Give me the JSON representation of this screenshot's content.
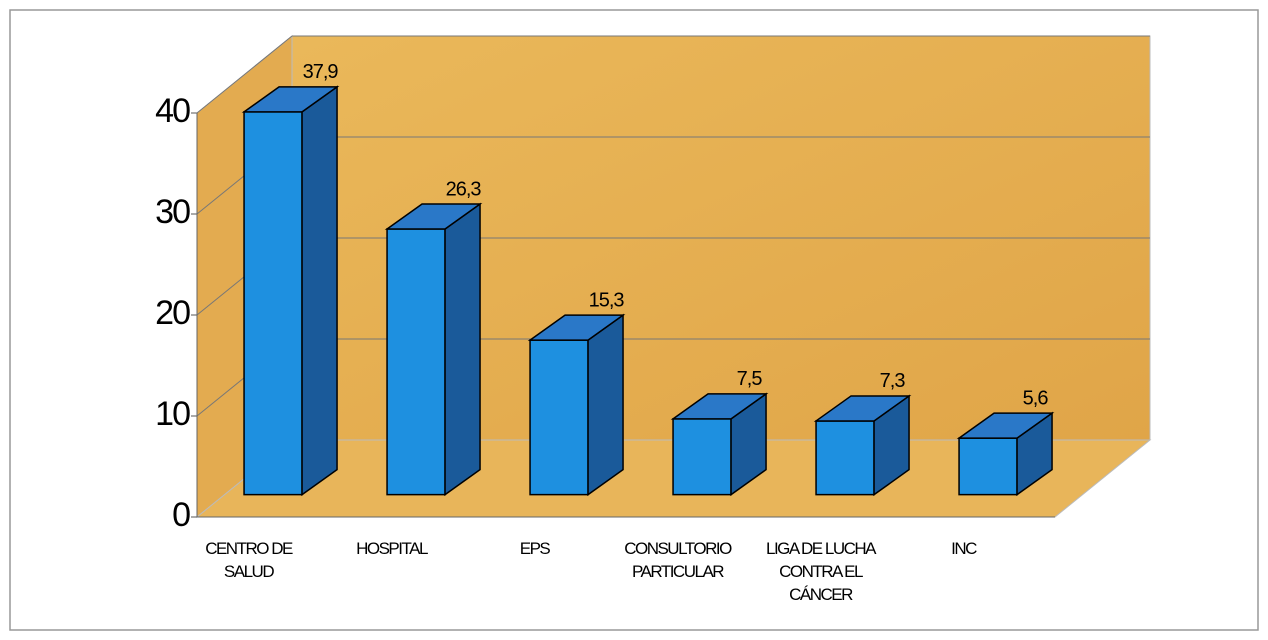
{
  "chart_data": {
    "type": "bar3d",
    "categories": [
      "CENTRO DE\nSALUD",
      "HOSPITAL",
      "EPS",
      "CONSULTORIO\nPARTICULAR",
      "LIGA DE LUCHA\nCONTRA EL\nCÁNCER",
      "INC"
    ],
    "values": [
      37.9,
      26.3,
      15.3,
      7.5,
      7.3,
      5.6
    ],
    "value_labels": [
      "37,9",
      "26,3",
      "15,3",
      "7,5",
      "7,3",
      "5,6"
    ],
    "color": "#1e90e0",
    "ylim": [
      0,
      40
    ],
    "yticks": [
      0,
      10,
      20,
      30,
      40
    ],
    "grid": true
  }
}
